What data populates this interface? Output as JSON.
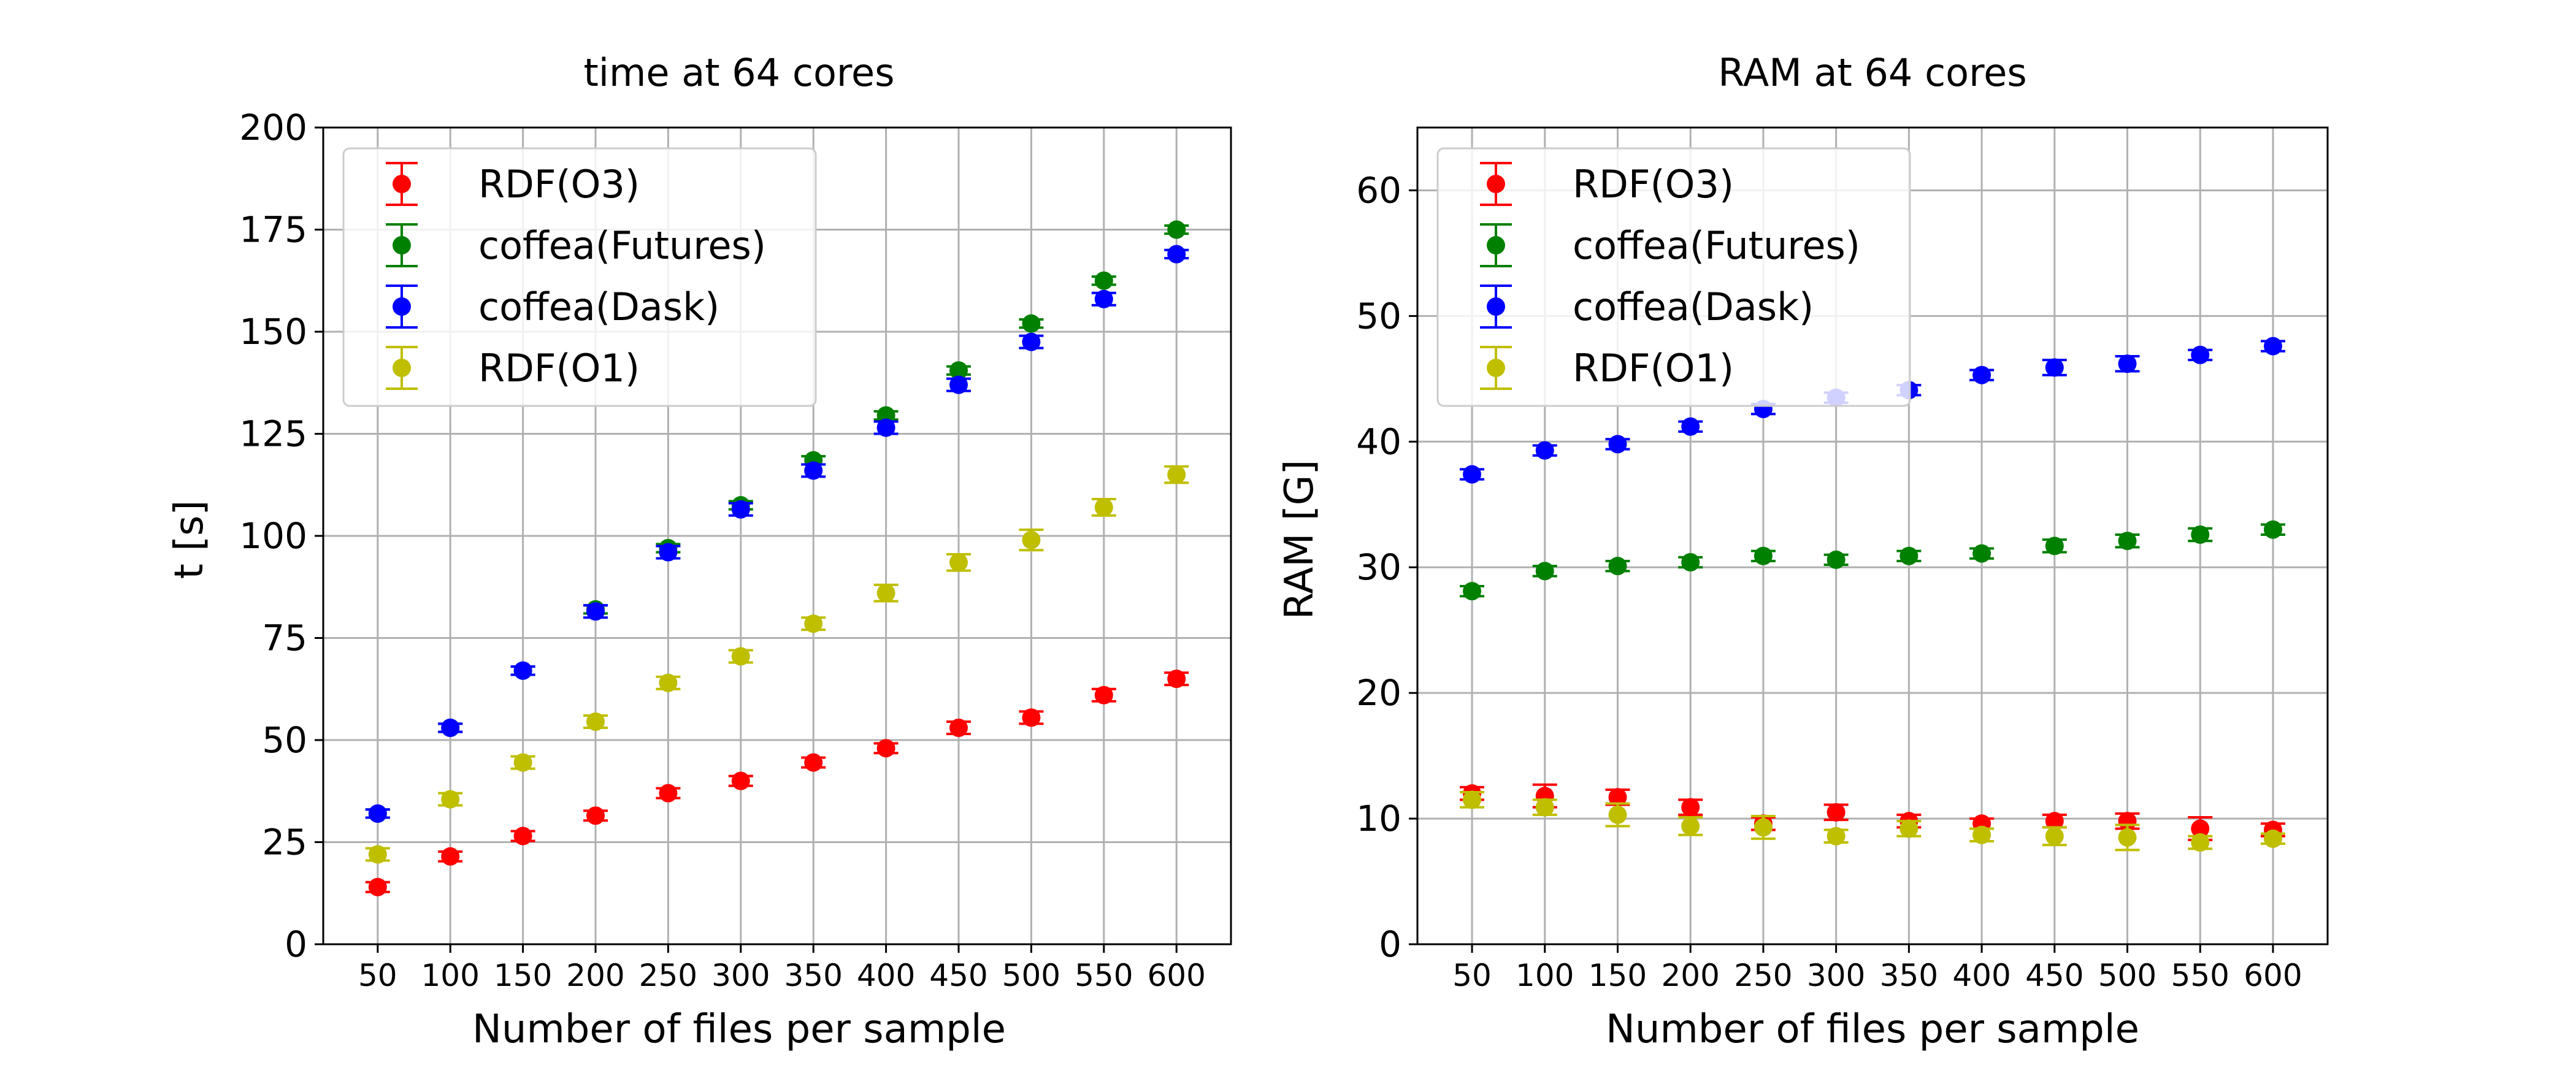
{
  "chart_data": [
    {
      "type": "scatter",
      "title": "time at 64 cores",
      "xlabel": "Number of files per sample",
      "ylabel": "t [s]",
      "x": [
        50,
        100,
        150,
        200,
        250,
        300,
        350,
        400,
        450,
        500,
        550,
        600
      ],
      "x_ticks": [
        "50",
        "100",
        "150",
        "200",
        "250",
        "300",
        "350",
        "400",
        "450",
        "500",
        "550",
        "600"
      ],
      "ylim": [
        0,
        200
      ],
      "y_ticks": [
        "0",
        "25",
        "50",
        "75",
        "100",
        "125",
        "150",
        "175",
        "200"
      ],
      "grid": true,
      "legend_position": "top-left",
      "series": [
        {
          "name": "RDF(O3)",
          "color": "#ff0000",
          "values": [
            14,
            21.5,
            26.5,
            31.5,
            37,
            40,
            44.5,
            48,
            53,
            55.5,
            61,
            65
          ],
          "errors": [
            1.2,
            1.2,
            1.2,
            1.2,
            1.2,
            1.2,
            1.2,
            1.2,
            1.5,
            1.5,
            1.5,
            1.5
          ]
        },
        {
          "name": "coffea(Futures)",
          "color": "#008000",
          "values": [
            32,
            53,
            67,
            82,
            97,
            107.5,
            118.5,
            129.5,
            140.5,
            152,
            162.5,
            175
          ],
          "errors": [
            1,
            1,
            1,
            1,
            1,
            1,
            1,
            1,
            1,
            1,
            1,
            1
          ]
        },
        {
          "name": "coffea(Dask)",
          "color": "#0000ff",
          "values": [
            32,
            53,
            67,
            81.5,
            96,
            106.5,
            116,
            126.5,
            137,
            147.5,
            158,
            169
          ],
          "errors": [
            1,
            1,
            1,
            1.5,
            1.5,
            1.5,
            1.5,
            1.5,
            1.5,
            1.5,
            1.5,
            1
          ]
        },
        {
          "name": "RDF(O1)",
          "color": "#bfbf00",
          "values": [
            22,
            35.5,
            44.5,
            54.5,
            64,
            70.5,
            78.5,
            86,
            93.5,
            99,
            107,
            115
          ],
          "errors": [
            1.5,
            1.5,
            1.5,
            1.5,
            1.5,
            1.5,
            1.5,
            2,
            2,
            2.5,
            2,
            2
          ]
        }
      ]
    },
    {
      "type": "scatter",
      "title": "RAM at 64 cores",
      "xlabel": "Number of files per sample",
      "ylabel": "RAM [G]",
      "x": [
        50,
        100,
        150,
        200,
        250,
        300,
        350,
        400,
        450,
        500,
        550,
        600
      ],
      "x_ticks": [
        "50",
        "100",
        "150",
        "200",
        "250",
        "300",
        "350",
        "400",
        "450",
        "500",
        "550",
        "600"
      ],
      "ylim": [
        0,
        65
      ],
      "y_ticks": [
        "0",
        "10",
        "20",
        "30",
        "40",
        "50",
        "60"
      ],
      "grid": true,
      "legend_position": "top-left",
      "series": [
        {
          "name": "RDF(O3)",
          "color": "#ff0000",
          "values": [
            12,
            11.8,
            11.7,
            10.9,
            9.6,
            10.5,
            9.8,
            9.6,
            9.8,
            9.8,
            9.2,
            9.1
          ],
          "errors": [
            0.5,
            0.9,
            0.6,
            0.6,
            0.5,
            0.6,
            0.5,
            0.4,
            0.5,
            0.6,
            0.9,
            0.5
          ]
        },
        {
          "name": "coffea(Futures)",
          "color": "#008000",
          "values": [
            28.1,
            29.7,
            30.1,
            30.4,
            30.9,
            30.6,
            30.9,
            31.1,
            31.7,
            32.1,
            32.6,
            33
          ],
          "errors": [
            0.4,
            0.4,
            0.4,
            0.4,
            0.4,
            0.4,
            0.4,
            0.4,
            0.5,
            0.5,
            0.5,
            0.4
          ]
        },
        {
          "name": "coffea(Dask)",
          "color": "#0000ff",
          "values": [
            37.4,
            39.3,
            39.8,
            41.2,
            42.6,
            43.5,
            44.1,
            45.3,
            45.9,
            46.2,
            46.9,
            47.6
          ],
          "errors": [
            0.4,
            0.4,
            0.4,
            0.4,
            0.4,
            0.4,
            0.4,
            0.4,
            0.6,
            0.6,
            0.4,
            0.4
          ]
        },
        {
          "name": "RDF(O1)",
          "color": "#bfbf00",
          "values": [
            11.5,
            10.9,
            10.3,
            9.4,
            9.3,
            8.6,
            9.2,
            8.7,
            8.6,
            8.5,
            8.1,
            8.4
          ],
          "errors": [
            0.6,
            0.6,
            0.9,
            0.7,
            0.9,
            0.5,
            0.6,
            0.5,
            0.7,
            1,
            0.5,
            0.4
          ]
        }
      ]
    }
  ]
}
